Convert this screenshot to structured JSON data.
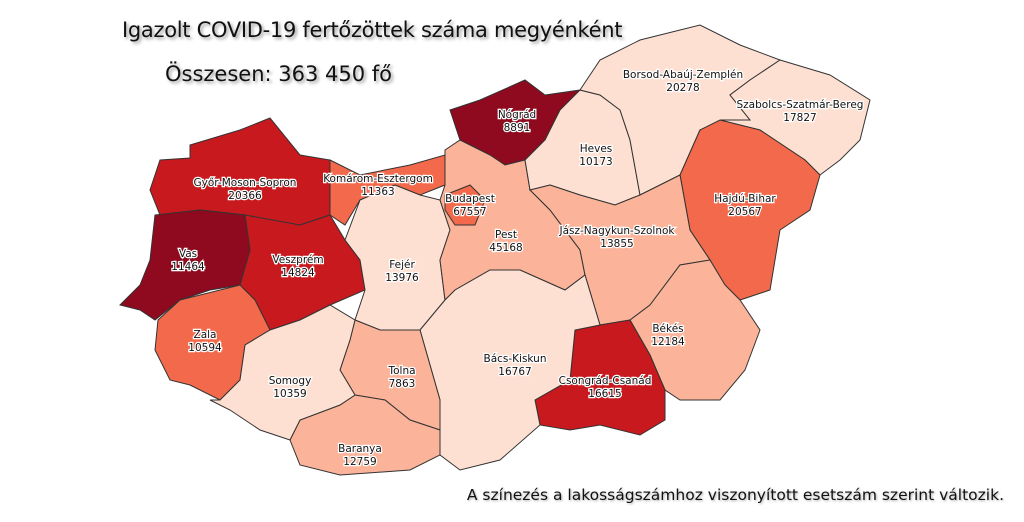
{
  "title": "Igazolt COVID-19 fertőzöttek száma megyénként",
  "total": "Összesen: 363 450 fő",
  "note": "A színezés a lakosságszámhoz viszonyított esetszám szerint változik.",
  "color_scale": {
    "level1": "#fde0d2",
    "level2": "#fbb49a",
    "level3": "#f26a4b",
    "level4": "#c8191e",
    "level5": "#8f0a1f"
  },
  "counties": [
    {
      "name": "Győr-Moson-Sopron",
      "cases": "20366",
      "level": "level4"
    },
    {
      "name": "Vas",
      "cases": "11464",
      "level": "level5"
    },
    {
      "name": "Veszprém",
      "cases": "14824",
      "level": "level4"
    },
    {
      "name": "Zala",
      "cases": "10594",
      "level": "level3"
    },
    {
      "name": "Komárom-Esztergom",
      "cases": "11363",
      "level": "level3"
    },
    {
      "name": "Fejér",
      "cases": "13976",
      "level": "level1"
    },
    {
      "name": "Nógrád",
      "cases": "8891",
      "level": "level5"
    },
    {
      "name": "Pest",
      "cases": "45168",
      "level": "level2"
    },
    {
      "name": "Budapest",
      "cases": "67557",
      "level": "level3"
    },
    {
      "name": "Heves",
      "cases": "10173",
      "level": "level1"
    },
    {
      "name": "Borsod-Abaúj-Zemplén",
      "cases": "20278",
      "level": "level1"
    },
    {
      "name": "Szabolcs-Szatmár-Bereg",
      "cases": "17827",
      "level": "level1"
    },
    {
      "name": "Hajdú-Bihar",
      "cases": "20567",
      "level": "level3"
    },
    {
      "name": "Jász-Nagykun-Szolnok",
      "cases": "13855",
      "level": "level2"
    },
    {
      "name": "Békés",
      "cases": "12184",
      "level": "level2"
    },
    {
      "name": "Csongrád-Csanád",
      "cases": "16615",
      "level": "level4"
    },
    {
      "name": "Bács-Kiskun",
      "cases": "16767",
      "level": "level1"
    },
    {
      "name": "Tolna",
      "cases": "7863",
      "level": "level2"
    },
    {
      "name": "Baranya",
      "cases": "12759",
      "level": "level2"
    },
    {
      "name": "Somogy",
      "cases": "10359",
      "level": "level1"
    }
  ]
}
